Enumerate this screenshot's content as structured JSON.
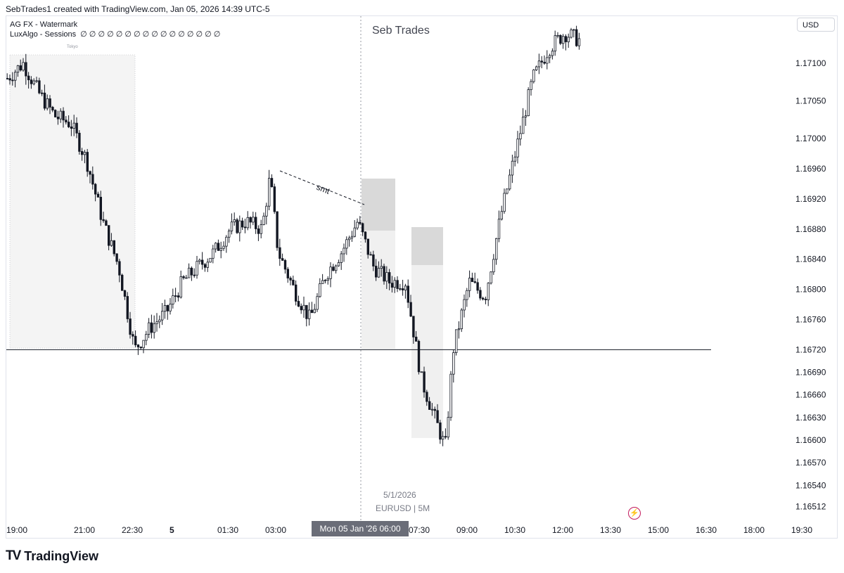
{
  "header": {
    "credit": "SebTrades1 created with TradingView.com, Jan 05, 2026 14:39 UTC-5"
  },
  "indicators": {
    "line1": "AG FX - Watermark",
    "line2_name": "LuxAlgo - Sessions",
    "line2_values": "∅ ∅ ∅ ∅ ∅ ∅ ∅ ∅ ∅ ∅ ∅ ∅ ∅ ∅ ∅ ∅"
  },
  "watermark": {
    "title": "Seb Trades",
    "date": "5/1/2026",
    "symbol": "EURUSD | 5M"
  },
  "currency": "USD",
  "crosshair_label": "Mon 05 Jan '26   06:00",
  "footer": {
    "brand": "TradingView",
    "logo": "TV"
  },
  "colors": {
    "candle": "#131722",
    "grid_zone": "#f5f5f5",
    "crosshair": "#9598a1",
    "bolt": "#c2185b"
  },
  "chart_data": {
    "type": "candlestick",
    "title": "Seb Trades",
    "symbol": "EURUSD",
    "timeframe": "5M",
    "yaxis_ticks": [
      "1.17100",
      "1.17050",
      "1.17000",
      "1.16960",
      "1.16920",
      "1.16880",
      "1.16840",
      "1.16800",
      "1.16760",
      "1.16720",
      "1.16690",
      "1.16660",
      "1.16630",
      "1.16600",
      "1.16570",
      "1.16540",
      "1.16512"
    ],
    "xaxis_ticks": [
      "19:00",
      "21:00",
      "22:30",
      "5",
      "01:30",
      "03:00",
      "04:30",
      "06:00",
      "07:30",
      "09:00",
      "10:30",
      "12:00",
      "13:30",
      "15:00",
      "16:30",
      "18:00",
      "19:30"
    ],
    "session_label": "Tokyo",
    "annotation": "smt",
    "horizontal_level": 1.1672,
    "price_path": [
      [
        "19:00",
        1.1708
      ],
      [
        "19:30",
        1.171
      ],
      [
        "20:00",
        1.1706
      ],
      [
        "20:30",
        1.1703
      ],
      [
        "21:00",
        1.1702
      ],
      [
        "21:30",
        1.1697
      ],
      [
        "22:00",
        1.1689
      ],
      [
        "22:30",
        1.1683
      ],
      [
        "23:00",
        1.1672
      ],
      [
        "23:30",
        1.1675
      ],
      [
        "00:00",
        1.1677
      ],
      [
        "00:30",
        1.1681
      ],
      [
        "01:00",
        1.1683
      ],
      [
        "01:30",
        1.1685
      ],
      [
        "02:00",
        1.1688
      ],
      [
        "02:30",
        1.1689
      ],
      [
        "03:00",
        1.1688
      ],
      [
        "03:15",
        1.1695
      ],
      [
        "03:30",
        1.1685
      ],
      [
        "04:00",
        1.168
      ],
      [
        "04:30",
        1.1676
      ],
      [
        "05:00",
        1.1682
      ],
      [
        "05:30",
        1.1685
      ],
      [
        "06:00",
        1.1689
      ],
      [
        "06:30",
        1.1683
      ],
      [
        "07:00",
        1.1681
      ],
      [
        "07:30",
        1.1681
      ],
      [
        "08:00",
        1.1668
      ],
      [
        "08:30",
        1.1662
      ],
      [
        "08:45",
        1.1659
      ],
      [
        "09:00",
        1.1672
      ],
      [
        "09:30",
        1.1681
      ],
      [
        "10:00",
        1.1679
      ],
      [
        "10:30",
        1.169
      ],
      [
        "11:00",
        1.1699
      ],
      [
        "11:30",
        1.1708
      ],
      [
        "12:00",
        1.1712
      ],
      [
        "12:30",
        1.1714
      ],
      [
        "13:00",
        1.1713
      ]
    ]
  }
}
